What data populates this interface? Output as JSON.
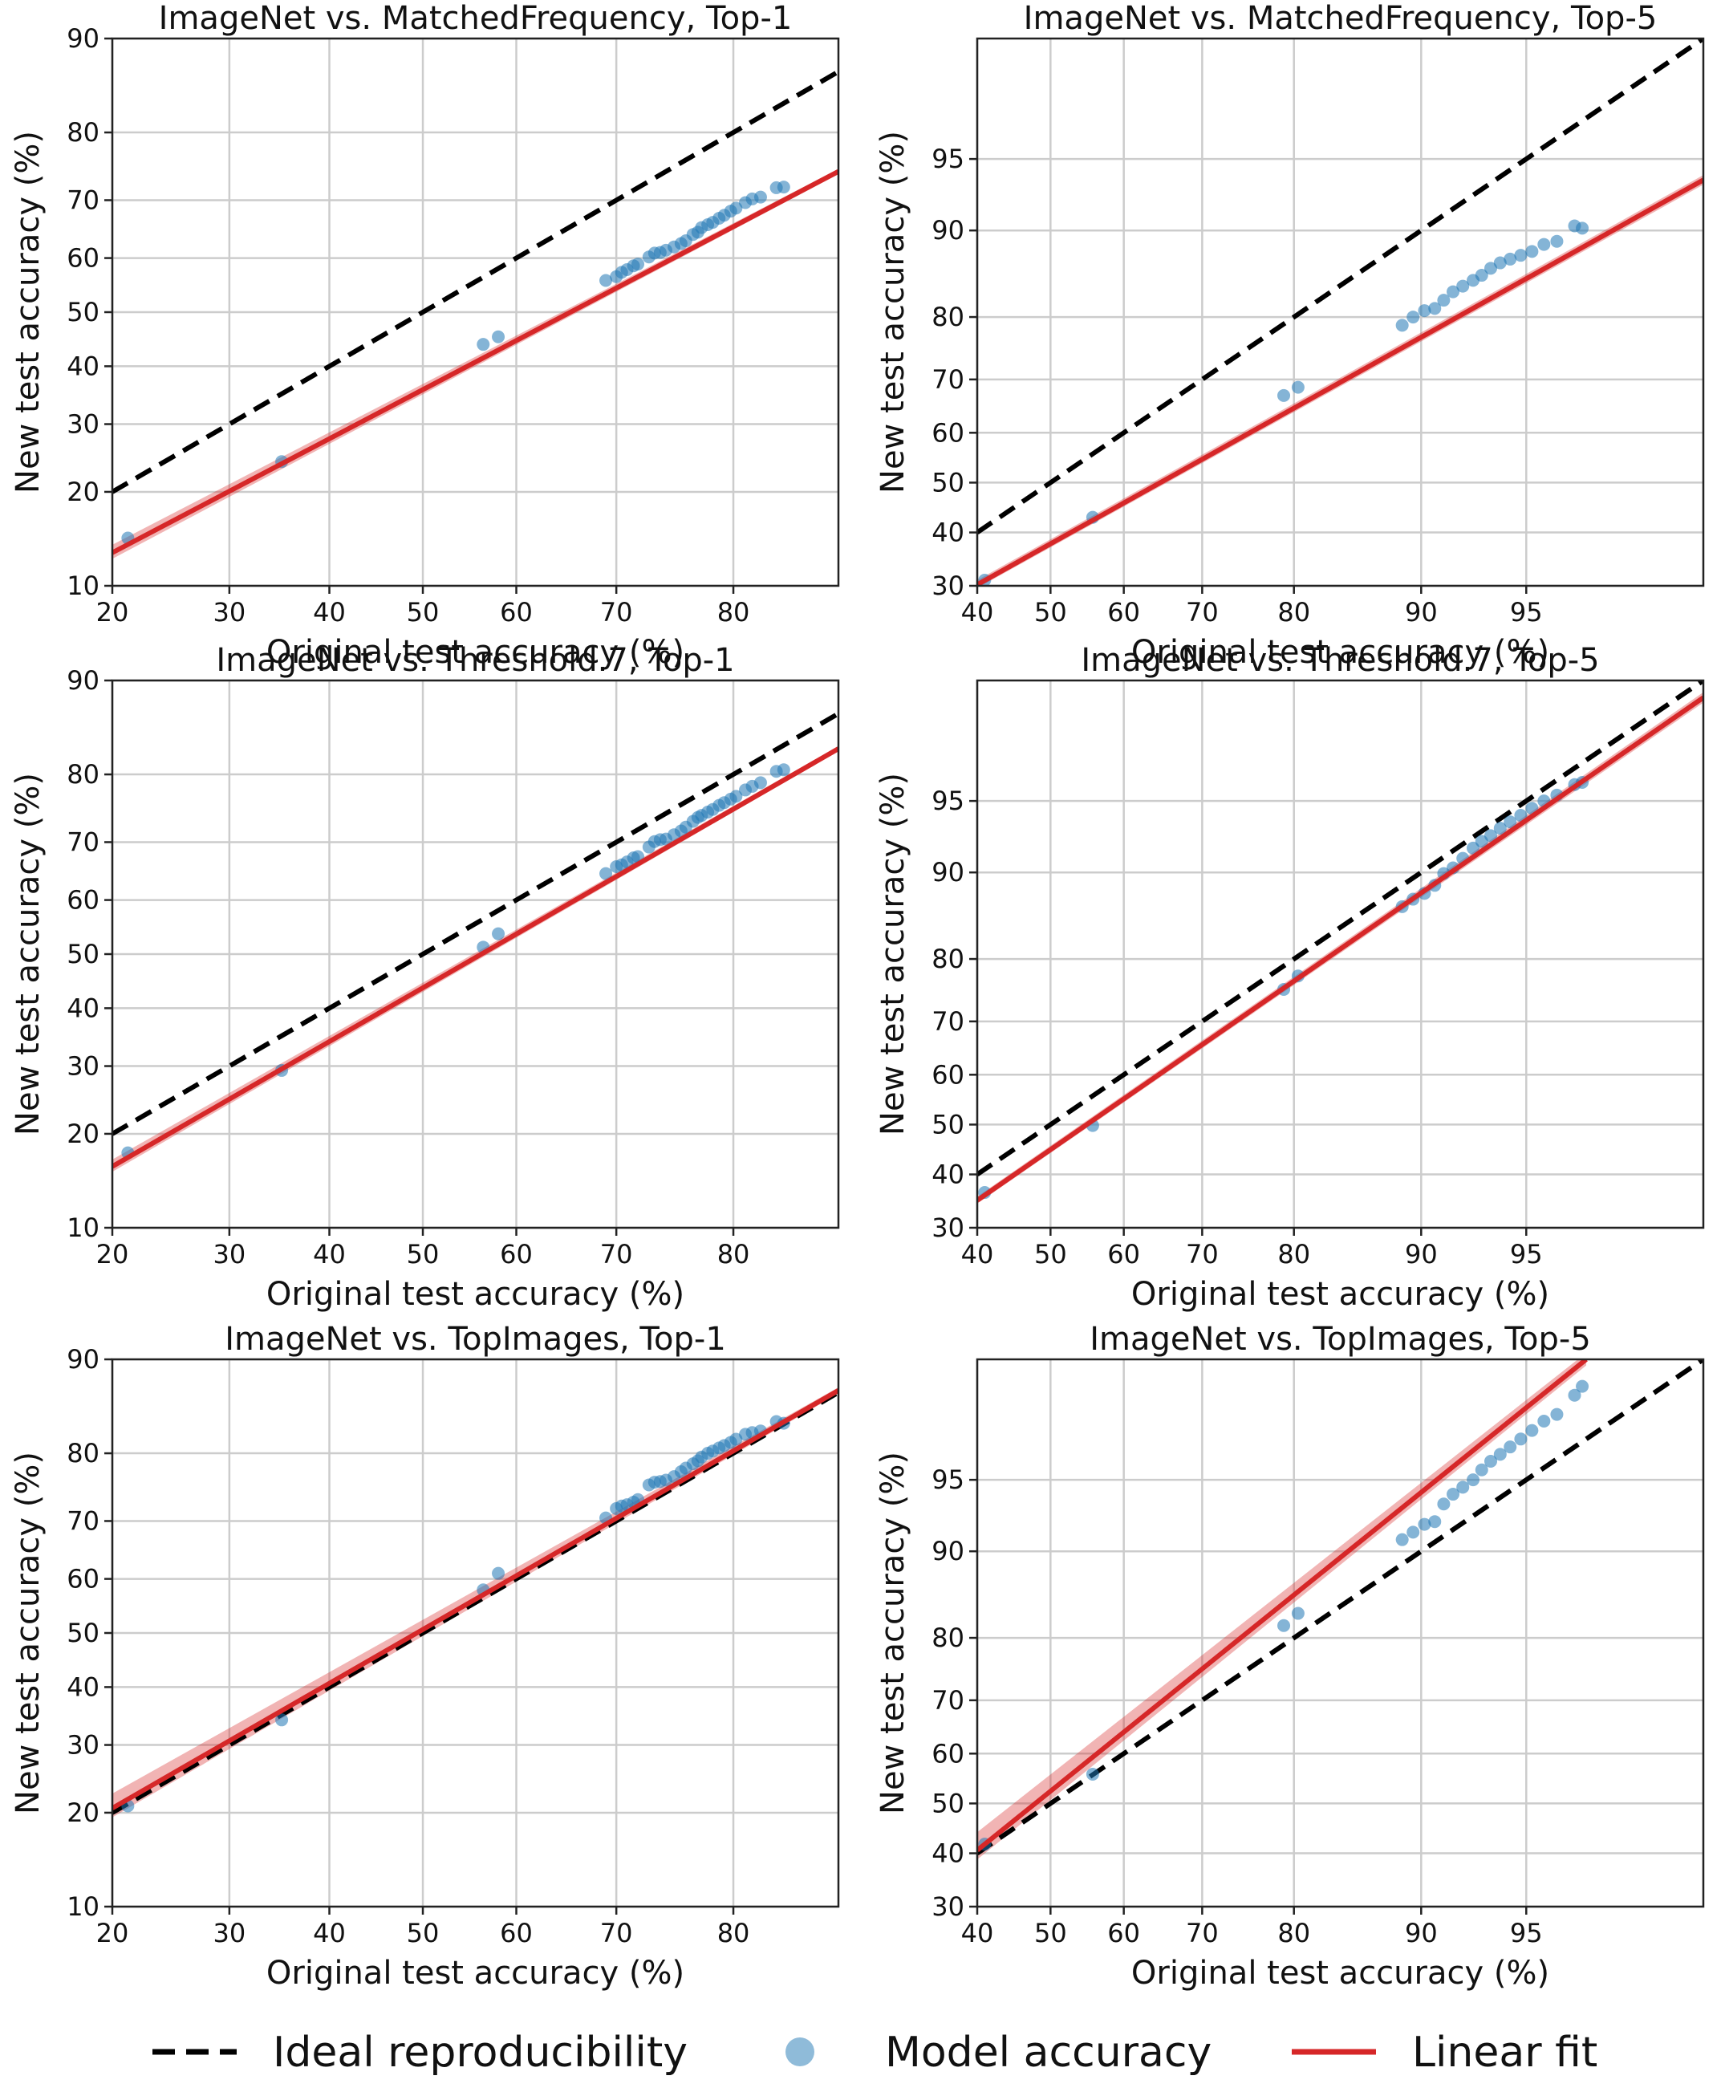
{
  "chart_data": [
    {
      "type": "scatter",
      "title": "ImageNet vs. MatchedFrequency, Top-1",
      "xlabel": "Original test accuracy (%)",
      "ylabel": "New test accuracy (%)",
      "xlim": [
        20,
        87
      ],
      "ylim": [
        10,
        90
      ],
      "scale": "probit",
      "x_ticks": [
        20,
        30,
        40,
        50,
        60,
        70,
        80
      ],
      "y_ticks": [
        10,
        20,
        30,
        40,
        50,
        60,
        70,
        80,
        90
      ],
      "grid": true,
      "series": [
        {
          "name": "Ideal reproducibility",
          "kind": "line",
          "style": "dashed",
          "color": "#000000",
          "x": [
            20,
            87
          ],
          "y": [
            20,
            87
          ]
        },
        {
          "name": "Linear fit",
          "kind": "line",
          "style": "solid",
          "color": "#d62728",
          "x": [
            20,
            87
          ],
          "y": [
            13.0,
            74.5
          ],
          "band_y_low": [
            12.4,
            74.1
          ],
          "band_y_high": [
            13.8,
            74.9
          ]
        },
        {
          "name": "Model accuracy",
          "kind": "scatter",
          "color": "#1f77b4",
          "x": [
            21.2,
            35.1,
            56.5,
            58.1,
            69.0,
            70.0,
            70.5,
            71.0,
            71.6,
            72.0,
            73.0,
            73.5,
            74.0,
            74.5,
            75.2,
            75.8,
            76.2,
            76.8,
            77.2,
            77.5,
            78.0,
            78.4,
            78.9,
            79.3,
            79.8,
            80.2,
            80.9,
            81.4,
            82.0,
            83.1,
            83.6
          ],
          "y": [
            14.5,
            24.2,
            44.0,
            45.4,
            55.9,
            56.6,
            57.4,
            57.9,
            58.6,
            58.9,
            60.2,
            60.9,
            61.0,
            61.4,
            62.0,
            62.6,
            63.1,
            64.2,
            64.6,
            65.4,
            65.9,
            66.3,
            67.0,
            67.5,
            68.2,
            68.7,
            69.6,
            70.2,
            70.5,
            72.0,
            72.1
          ]
        }
      ]
    },
    {
      "type": "scatter",
      "title": "ImageNet vs. MatchedFrequency, Top-5",
      "xlabel": "Original test accuracy (%)",
      "ylabel": "New test accuracy (%)",
      "xlim": [
        40,
        98.8
      ],
      "ylim": [
        30,
        98.8
      ],
      "scale": "probit",
      "x_ticks": [
        40,
        50,
        60,
        70,
        80,
        90,
        95
      ],
      "y_ticks": [
        30,
        40,
        50,
        60,
        70,
        80,
        90,
        95
      ],
      "grid": true,
      "series": [
        {
          "name": "Ideal reproducibility",
          "kind": "line",
          "style": "dashed",
          "color": "#000000",
          "x": [
            40,
            98.8
          ],
          "y": [
            40,
            98.8
          ]
        },
        {
          "name": "Linear fit",
          "kind": "line",
          "style": "solid",
          "color": "#d62728",
          "x": [
            40,
            98.8
          ],
          "y": [
            30.2,
            93.8
          ],
          "band_y_low": [
            29.6,
            93.5
          ],
          "band_y_high": [
            31.0,
            94.1
          ]
        },
        {
          "name": "Model accuracy",
          "kind": "scatter",
          "color": "#1f77b4",
          "x": [
            41.0,
            55.8,
            79.0,
            80.4,
            88.8,
            89.5,
            90.2,
            90.8,
            91.3,
            91.8,
            92.3,
            92.8,
            93.2,
            93.6,
            94.0,
            94.4,
            94.8,
            95.2,
            95.6,
            96.0,
            96.5,
            96.7
          ],
          "y": [
            31.0,
            43.0,
            67.1,
            68.6,
            78.8,
            80.0,
            80.9,
            81.2,
            82.3,
            83.4,
            84.1,
            84.8,
            85.4,
            86.2,
            86.8,
            87.2,
            87.6,
            88.0,
            88.7,
            89.0,
            90.4,
            90.2
          ]
        }
      ]
    },
    {
      "type": "scatter",
      "title": "ImageNet vs. Threshold.7, Top-1",
      "xlabel": "Original test accuracy (%)",
      "ylabel": "New test accuracy (%)",
      "xlim": [
        20,
        87
      ],
      "ylim": [
        10,
        90
      ],
      "scale": "probit",
      "x_ticks": [
        20,
        30,
        40,
        50,
        60,
        70,
        80
      ],
      "y_ticks": [
        10,
        20,
        30,
        40,
        50,
        60,
        70,
        80,
        90
      ],
      "grid": true,
      "series": [
        {
          "name": "Ideal reproducibility",
          "kind": "line",
          "style": "dashed",
          "color": "#000000",
          "x": [
            20,
            87
          ],
          "y": [
            20,
            87
          ]
        },
        {
          "name": "Linear fit",
          "kind": "line",
          "style": "solid",
          "color": "#d62728",
          "x": [
            20,
            87
          ],
          "y": [
            16.0,
            83.2
          ],
          "band_y_low": [
            15.4,
            82.9
          ],
          "band_y_high": [
            16.8,
            83.5
          ]
        },
        {
          "name": "Model accuracy",
          "kind": "scatter",
          "color": "#1f77b4",
          "x": [
            21.2,
            35.1,
            56.5,
            58.1,
            69.0,
            70.0,
            70.5,
            71.0,
            71.6,
            72.0,
            73.0,
            73.5,
            74.0,
            74.5,
            75.2,
            75.8,
            76.2,
            76.8,
            77.2,
            77.5,
            78.0,
            78.4,
            78.9,
            79.3,
            79.8,
            80.2,
            80.9,
            81.4,
            82.0,
            83.1,
            83.6
          ],
          "y": [
            17.6,
            29.3,
            51.3,
            53.8,
            64.7,
            65.9,
            66.2,
            66.7,
            67.4,
            67.6,
            69.2,
            70.1,
            70.4,
            70.5,
            71.2,
            71.8,
            72.4,
            73.3,
            73.9,
            74.2,
            74.7,
            75.1,
            75.7,
            76.1,
            76.6,
            77.0,
            77.9,
            78.4,
            78.9,
            80.4,
            80.6
          ]
        }
      ]
    },
    {
      "type": "scatter",
      "title": "ImageNet vs. Threshold.7, Top-5",
      "xlabel": "Original test accuracy (%)",
      "ylabel": "New test accuracy (%)",
      "xlim": [
        40,
        98.8
      ],
      "ylim": [
        30,
        98.8
      ],
      "scale": "probit",
      "x_ticks": [
        40,
        50,
        60,
        70,
        80,
        90,
        95
      ],
      "y_ticks": [
        30,
        40,
        50,
        60,
        70,
        80,
        90,
        95
      ],
      "grid": true,
      "series": [
        {
          "name": "Ideal reproducibility",
          "kind": "line",
          "style": "dashed",
          "color": "#000000",
          "x": [
            40,
            98.8
          ],
          "y": [
            40,
            98.8
          ]
        },
        {
          "name": "Linear fit",
          "kind": "line",
          "style": "solid",
          "color": "#d62728",
          "x": [
            40,
            98.8
          ],
          "y": [
            35.0,
            98.5
          ],
          "band_y_low": [
            34.4,
            98.4
          ],
          "band_y_high": [
            35.7,
            98.6
          ]
        },
        {
          "name": "Model accuracy",
          "kind": "scatter",
          "color": "#1f77b4",
          "x": [
            41.0,
            55.8,
            79.0,
            80.4,
            88.8,
            89.5,
            90.2,
            90.8,
            91.3,
            91.8,
            92.3,
            92.8,
            93.2,
            93.6,
            94.0,
            94.4,
            94.8,
            95.2,
            95.6,
            96.0,
            96.5,
            96.7
          ],
          "y": [
            36.5,
            49.8,
            75.4,
            77.5,
            86.6,
            87.4,
            88.0,
            88.8,
            89.9,
            90.4,
            91.2,
            92.0,
            92.5,
            92.9,
            93.4,
            93.8,
            94.2,
            94.6,
            95.0,
            95.3,
            95.8,
            95.9
          ]
        }
      ]
    },
    {
      "type": "scatter",
      "title": "ImageNet vs. TopImages, Top-1",
      "xlabel": "Original test accuracy (%)",
      "ylabel": "New test accuracy (%)",
      "xlim": [
        20,
        87
      ],
      "ylim": [
        10,
        90
      ],
      "scale": "probit",
      "x_ticks": [
        20,
        30,
        40,
        50,
        60,
        70,
        80
      ],
      "y_ticks": [
        10,
        20,
        30,
        40,
        50,
        60,
        70,
        80,
        90
      ],
      "grid": true,
      "series": [
        {
          "name": "Ideal reproducibility",
          "kind": "line",
          "style": "dashed",
          "color": "#000000",
          "x": [
            20,
            87
          ],
          "y": [
            20,
            87
          ]
        },
        {
          "name": "Linear fit",
          "kind": "line",
          "style": "solid",
          "color": "#d62728",
          "x": [
            20,
            87
          ],
          "y": [
            20.6,
            87.2
          ],
          "band_y_low": [
            19.4,
            86.9
          ],
          "band_y_high": [
            22.6,
            87.5
          ]
        },
        {
          "name": "Model accuracy",
          "kind": "scatter",
          "color": "#1f77b4",
          "x": [
            21.2,
            35.1,
            56.5,
            58.1,
            69.0,
            70.0,
            70.5,
            71.0,
            71.6,
            72.0,
            73.0,
            73.5,
            74.0,
            74.5,
            75.2,
            75.8,
            76.2,
            76.8,
            77.2,
            77.5,
            78.0,
            78.4,
            78.9,
            79.3,
            79.8,
            80.2,
            80.9,
            81.4,
            82.0,
            83.1,
            83.6
          ],
          "y": [
            20.9,
            34.2,
            58.0,
            61.0,
            70.5,
            72.0,
            72.4,
            72.6,
            73.0,
            73.4,
            75.6,
            76.0,
            76.1,
            76.3,
            76.8,
            77.5,
            78.0,
            78.6,
            79.0,
            79.5,
            80.0,
            80.3,
            80.7,
            81.0,
            81.4,
            81.8,
            82.4,
            82.6,
            82.8,
            83.9,
            83.7
          ]
        }
      ]
    },
    {
      "type": "scatter",
      "title": "ImageNet vs. TopImages, Top-5",
      "xlabel": "Original test accuracy (%)",
      "ylabel": "New test accuracy (%)",
      "xlim": [
        40,
        98.8
      ],
      "ylim": [
        30,
        98.8
      ],
      "scale": "probit",
      "x_ticks": [
        40,
        50,
        60,
        70,
        80,
        90,
        95
      ],
      "y_ticks": [
        30,
        40,
        50,
        60,
        70,
        80,
        90,
        95
      ],
      "grid": true,
      "series": [
        {
          "name": "Ideal reproducibility",
          "kind": "line",
          "style": "dashed",
          "color": "#000000",
          "x": [
            40,
            98.8
          ],
          "y": [
            40,
            98.8
          ]
        },
        {
          "name": "Linear fit",
          "kind": "line",
          "style": "solid",
          "color": "#d62728",
          "x": [
            40,
            96.8
          ],
          "y": [
            40.6,
            98.8
          ],
          "band_y_low": [
            38.8,
            98.7
          ],
          "band_y_high": [
            44.2,
            98.9
          ]
        },
        {
          "name": "Model accuracy",
          "kind": "scatter",
          "color": "#1f77b4",
          "x": [
            41.0,
            55.8,
            79.0,
            80.4,
            88.8,
            89.5,
            90.2,
            90.8,
            91.3,
            91.8,
            92.3,
            92.8,
            93.2,
            93.6,
            94.0,
            94.4,
            94.8,
            95.2,
            95.6,
            96.0,
            96.5,
            96.7
          ],
          "y": [
            41.8,
            55.9,
            81.7,
            83.3,
            91.0,
            91.6,
            92.2,
            92.4,
            93.6,
            94.2,
            94.6,
            95.0,
            95.5,
            95.9,
            96.2,
            96.5,
            96.8,
            97.1,
            97.4,
            97.6,
            98.1,
            98.3
          ]
        }
      ]
    }
  ],
  "legend": {
    "placement": "bottom-center",
    "items": [
      {
        "label": "Ideal reproducibility",
        "kind": "dashed-line",
        "color": "#000000"
      },
      {
        "label": "Model accuracy",
        "kind": "marker",
        "color": "#1f77b4"
      },
      {
        "label": "Linear fit",
        "kind": "solid-line",
        "color": "#d62728"
      }
    ]
  }
}
